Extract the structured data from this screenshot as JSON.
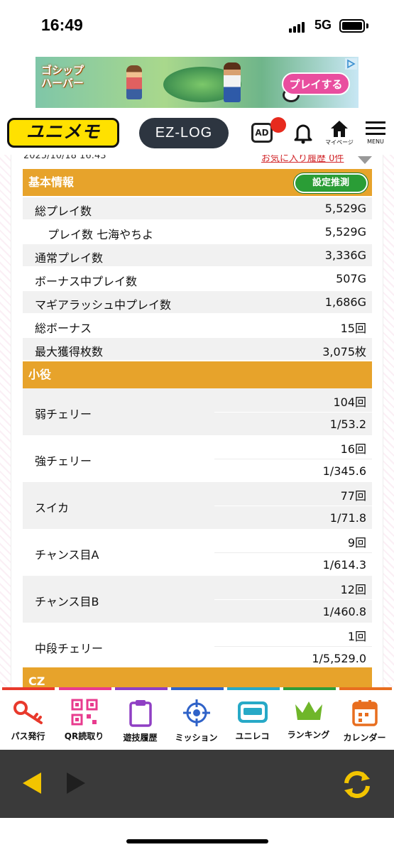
{
  "status_bar": {
    "time": "16:49",
    "network": "5G"
  },
  "ad": {
    "title": "ゴシップハーバー",
    "play_label": "プレイする"
  },
  "header": {
    "logo": "ユニメモ",
    "ezlog": "EZ-LOG",
    "ad_icon": "AD",
    "mypage_label": "マイページ",
    "menu_label": "MENU"
  },
  "meta": {
    "date": "2025/10/18 16:43",
    "history_link": "お気に入り履歴 0件"
  },
  "basic": {
    "title": "基本情報",
    "estimate_button": "設定推測",
    "rows": [
      {
        "label": "総プレイ数",
        "value": "5,529G"
      },
      {
        "label": "プレイ数 七海やちよ",
        "value": "5,529G"
      },
      {
        "label": "通常プレイ数",
        "value": "3,336G"
      },
      {
        "label": "ボーナス中プレイ数",
        "value": "507G"
      },
      {
        "label": "マギアラッシュ中プレイ数",
        "value": "1,686G"
      },
      {
        "label": "総ボーナス",
        "value": "15回"
      },
      {
        "label": "最大獲得枚数",
        "value": "3,075枚"
      }
    ]
  },
  "koyaku": {
    "title": "小役",
    "rows": [
      {
        "label": "弱チェリー",
        "count": "104回",
        "prob": "1/53.2"
      },
      {
        "label": "強チェリー",
        "count": "16回",
        "prob": "1/345.6"
      },
      {
        "label": "スイカ",
        "count": "77回",
        "prob": "1/71.8"
      },
      {
        "label": "チャンス目A",
        "count": "9回",
        "prob": "1/614.3"
      },
      {
        "label": "チャンス目B",
        "count": "12回",
        "prob": "1/460.8"
      },
      {
        "label": "中段チェリー",
        "count": "1回",
        "prob": "1/5,529.0"
      }
    ]
  },
  "cz": {
    "title": "CZ"
  },
  "tabs": [
    {
      "label": "パス発行",
      "icon": "key-icon",
      "color": "#e8392c"
    },
    {
      "label": "QR読取り",
      "icon": "qr-code-icon",
      "color": "#e83b8e"
    },
    {
      "label": "遊技履歴",
      "icon": "clipboard-icon",
      "color": "#8f3fc4"
    },
    {
      "label": "ミッション",
      "icon": "target-icon",
      "color": "#2f62c8"
    },
    {
      "label": "ユニレコ",
      "icon": "unireco-icon",
      "color": "#27a9c7"
    },
    {
      "label": "ランキング",
      "icon": "crown-icon",
      "color": "#2f9c3a"
    },
    {
      "label": "カレンダー",
      "icon": "calendar-icon",
      "color": "#e86e1f"
    }
  ],
  "colors": {
    "accent": "#e7a32b",
    "estimate": "#2a9d36",
    "toolbar": "#3a3a3a",
    "toolbar_icon": "#f2c400"
  }
}
